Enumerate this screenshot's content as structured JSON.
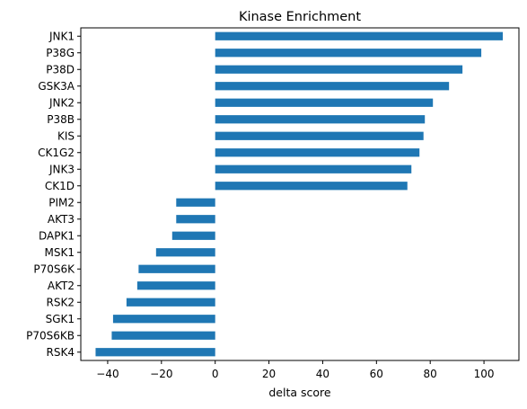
{
  "chart_data": {
    "type": "bar",
    "orientation": "horizontal",
    "title": "Kinase Enrichment",
    "xlabel": "delta score",
    "ylabel": "",
    "xlim": [
      -50,
      113
    ],
    "xticks": [
      -40,
      -20,
      0,
      20,
      40,
      60,
      80,
      100
    ],
    "xtick_labels": [
      "−40",
      "−20",
      "0",
      "20",
      "40",
      "60",
      "80",
      "100"
    ],
    "grid": false,
    "color": "#1f77b4",
    "categories": [
      "JNK1",
      "P38G",
      "P38D",
      "GSK3A",
      "JNK2",
      "P38B",
      "KIS",
      "CK1G2",
      "JNK3",
      "CK1D",
      "PIM2",
      "AKT3",
      "DAPK1",
      "MSK1",
      "P70S6K",
      "AKT2",
      "RSK2",
      "SGK1",
      "P70S6KB",
      "RSK4"
    ],
    "values": [
      107,
      99,
      92,
      87,
      81,
      78,
      77.5,
      76,
      73,
      71.5,
      -14.5,
      -14.5,
      -16,
      -22,
      -28.5,
      -29,
      -33,
      -38,
      -38.5,
      -44.5
    ]
  }
}
